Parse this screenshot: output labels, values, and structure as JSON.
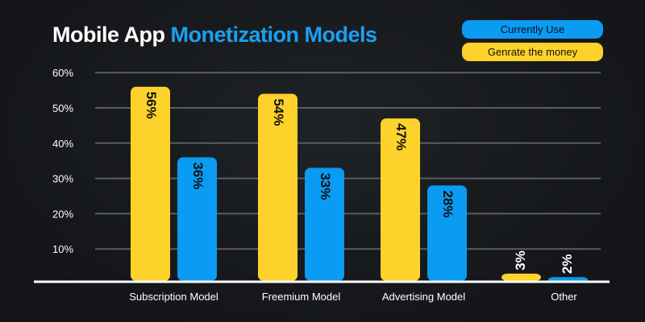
{
  "chart_data": {
    "type": "bar",
    "title": {
      "part1": "Mobile App",
      "part2": "Monetization Models"
    },
    "categories": [
      "Subscription Model",
      "Freemium Model",
      "Advertising Model",
      "Other"
    ],
    "series": [
      {
        "name": "Genrate the money",
        "color": "#fdd22a",
        "values": [
          56,
          54,
          47,
          3
        ],
        "labels": [
          "56%",
          "54%",
          "47%",
          "3%"
        ]
      },
      {
        "name": "Currently Use",
        "color": "#0a9bf2",
        "values": [
          36,
          33,
          28,
          2
        ],
        "labels": [
          "36%",
          "33%",
          "28%",
          "2%"
        ]
      }
    ],
    "yticks": [
      10,
      20,
      30,
      40,
      50,
      60
    ],
    "ytick_labels": [
      "10%",
      "20%",
      "30%",
      "40%",
      "50%",
      "60%"
    ],
    "ylim": [
      0,
      60
    ],
    "grid": true,
    "legend_position": "top-right",
    "xlabel": "",
    "ylabel": ""
  }
}
